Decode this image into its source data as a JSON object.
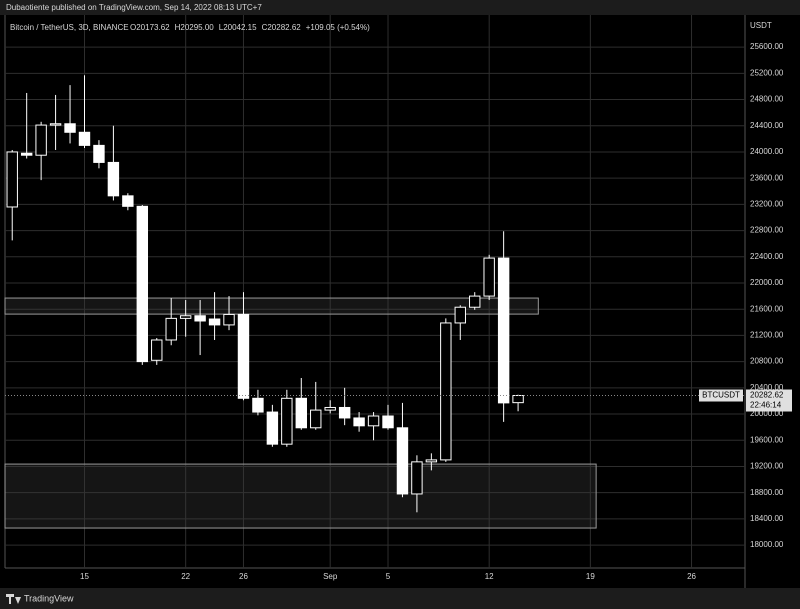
{
  "header": {
    "published": "Dubaotiente published on TradingView.com, Sep 14, 2022 08:13 UTC+7"
  },
  "footer": {
    "brand": "TradingView"
  },
  "chart_data": {
    "type": "candlestick",
    "symbol": "Bitcoin / TetherUS, 3D, BINANCE",
    "ohlc_labels": [
      "O20173.62",
      "H20295.00",
      "L20042.15",
      "C20282.62"
    ],
    "change": "+109.05 (+0.54%)",
    "y_unit": "USDT",
    "ticker": "BTCUSDT",
    "last_price": 20282.62,
    "countdown": "22:46:14",
    "up_color": "#000000",
    "down_color": "#ffffff",
    "wick_color": "#ffffff",
    "grid": true,
    "x": [
      10,
      11,
      12,
      13,
      14,
      15,
      16,
      17,
      18,
      19,
      20,
      21,
      22,
      23,
      24,
      25,
      26,
      27,
      28,
      29,
      30,
      31,
      32,
      33,
      34,
      35,
      36,
      37,
      38,
      39,
      40,
      41,
      42,
      43,
      44,
      45
    ],
    "open": [
      23160,
      23980,
      23950,
      24410,
      24430,
      24300,
      24100,
      23840,
      23330,
      23170,
      20820,
      21130,
      21460,
      21500,
      21450,
      21360,
      21520,
      20240,
      20030,
      19540,
      20240,
      19790,
      20060,
      20100,
      19940,
      19820,
      19970,
      19790,
      18780,
      19270,
      19300,
      21390,
      21630,
      21800,
      22380,
      20173.62
    ],
    "high": [
      24030,
      24900,
      24460,
      24870,
      25020,
      25170,
      24180,
      24400,
      23370,
      23190,
      21160,
      21770,
      21740,
      21740,
      21860,
      21800,
      21860,
      20370,
      20140,
      20370,
      20550,
      20490,
      20210,
      20400,
      20030,
      20030,
      20140,
      20170,
      19370,
      19400,
      21460,
      21660,
      21860,
      22430,
      22790,
      20295.0
    ],
    "low": [
      22650,
      23900,
      23570,
      24030,
      24130,
      24060,
      23750,
      23260,
      23110,
      20750,
      20750,
      21050,
      21180,
      20900,
      21130,
      21280,
      20210,
      19980,
      19500,
      19500,
      19760,
      19760,
      20010,
      19830,
      19730,
      19600,
      19760,
      18730,
      18500,
      19140,
      19270,
      21130,
      21590,
      21740,
      19880,
      20042.15
    ],
    "close": [
      24000,
      23950,
      24410,
      24430,
      24300,
      24100,
      23840,
      23330,
      23170,
      20800,
      21130,
      21460,
      21500,
      21420,
      21360,
      21520,
      20240,
      20030,
      19540,
      20240,
      19790,
      20060,
      20100,
      19940,
      19820,
      19970,
      19790,
      18780,
      19270,
      19300,
      21390,
      21630,
      21800,
      22380,
      20170,
      20282.62
    ],
    "zones": [
      {
        "x_range": [
          9.5,
          46.4
        ],
        "y_range": [
          21525,
          21770
        ]
      },
      {
        "x_range": [
          9.5,
          50.4
        ],
        "y_range": [
          18260,
          19236
        ]
      }
    ],
    "xlim": [
      9.5,
      60.7
    ],
    "ylim": [
      17650,
      26090
    ],
    "xticks": [
      {
        "value": 15,
        "label": "15"
      },
      {
        "value": 22,
        "label": "22"
      },
      {
        "value": 26,
        "label": "26"
      },
      {
        "value": 32,
        "label": "Sep"
      },
      {
        "value": 36,
        "label": "5"
      },
      {
        "value": 43,
        "label": "12"
      },
      {
        "value": 50,
        "label": "19"
      },
      {
        "value": 57,
        "label": "26"
      }
    ],
    "yticks": [
      {
        "value": 18000,
        "label": "18000.00"
      },
      {
        "value": 18400,
        "label": "18400.00"
      },
      {
        "value": 18800,
        "label": "18800.00"
      },
      {
        "value": 19200,
        "label": "19200.00"
      },
      {
        "value": 19600,
        "label": "19600.00"
      },
      {
        "value": 20000,
        "label": "20000.00"
      },
      {
        "value": 20400,
        "label": "20400.00"
      },
      {
        "value": 20800,
        "label": "20800.00"
      },
      {
        "value": 21200,
        "label": "21200.00"
      },
      {
        "value": 21600,
        "label": "21600.00"
      },
      {
        "value": 22000,
        "label": "22000.00"
      },
      {
        "value": 22400,
        "label": "22400.00"
      },
      {
        "value": 22800,
        "label": "22800.00"
      },
      {
        "value": 23200,
        "label": "23200.00"
      },
      {
        "value": 23600,
        "label": "23600.00"
      },
      {
        "value": 24000,
        "label": "24000.00"
      },
      {
        "value": 24400,
        "label": "24400.00"
      },
      {
        "value": 24800,
        "label": "24800.00"
      },
      {
        "value": 25200,
        "label": "25200.00"
      },
      {
        "value": 25600,
        "label": "25600.00"
      }
    ]
  }
}
